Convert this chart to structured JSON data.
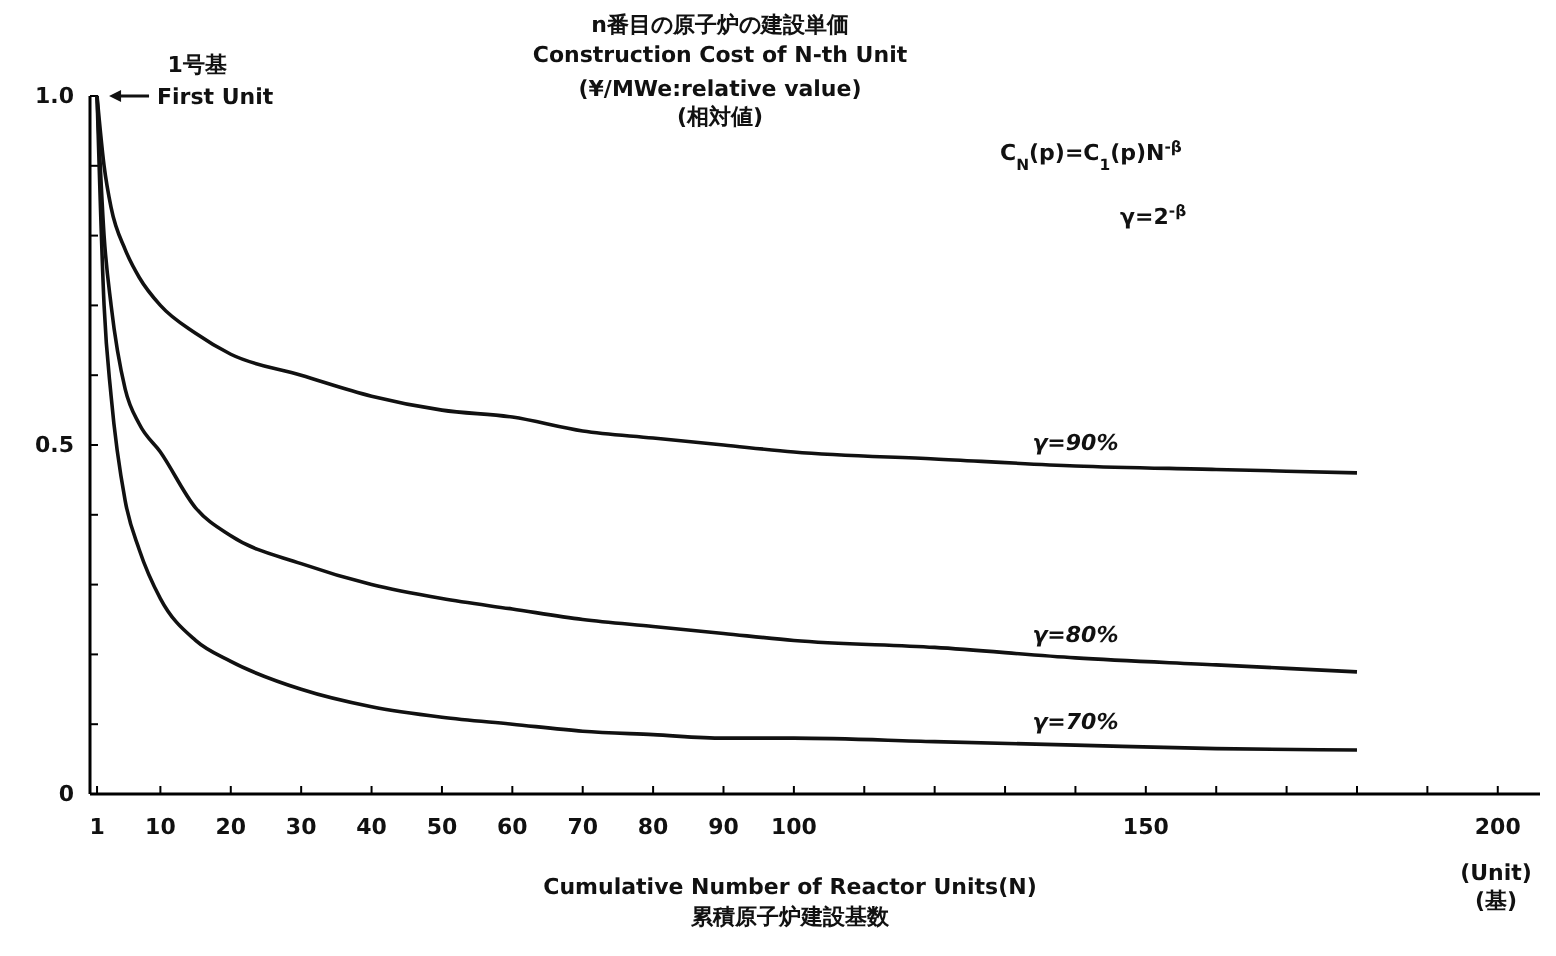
{
  "chart_data": {
    "type": "line",
    "title": "n番目の原子炉の建設単価",
    "subtitle": "Construction Cost of N-th Unit",
    "ylabel": "(¥/MWe:relative value)\n(相対値)",
    "xlabel": "Cumulative Number of Reactor Units(N)\n累積原子炉建設基数",
    "annotations": [
      {
        "text": "1号基\nFirst Unit",
        "x": 1,
        "y": 1
      },
      "C$_{N}$(p)=C$_{1}$(p)N$^{-β}$",
      "γ=2$^{-β}$",
      "(Unit)\n(基)"
    ],
    "x": [
      1,
      2,
      3,
      5,
      7,
      10,
      15,
      20,
      30,
      40,
      50,
      60,
      70,
      80,
      90,
      100,
      120,
      140,
      160,
      180
    ],
    "series": [
      {
        "name": "γ=90%",
        "color": "#111111",
        "values": [
          1,
          0.9,
          0.84,
          0.78,
          0.74,
          0.7,
          0.66,
          0.63,
          0.6,
          0.57,
          0.55,
          0.54,
          0.52,
          0.51,
          0.5,
          0.49,
          0.48,
          0.47,
          0.465,
          0.46
        ]
      },
      {
        "name": "γ=80%",
        "color": "#111111",
        "values": [
          1,
          0.8,
          0.7,
          0.58,
          0.53,
          0.49,
          0.41,
          0.37,
          0.33,
          0.3,
          0.28,
          0.265,
          0.25,
          0.24,
          0.23,
          0.22,
          0.21,
          0.195,
          0.185,
          0.175
        ]
      },
      {
        "name": "γ=70%",
        "color": "#111111",
        "values": [
          1,
          0.7,
          0.57,
          0.42,
          0.35,
          0.28,
          0.22,
          0.19,
          0.15,
          0.125,
          0.11,
          0.1,
          0.09,
          0.085,
          0.08,
          0.08,
          0.075,
          0.07,
          0.065,
          0.063
        ]
      }
    ],
    "xlim": [
      0,
      206
    ],
    "ylim": [
      0,
      1
    ],
    "xticks": [
      1,
      10,
      20,
      30,
      40,
      50,
      60,
      70,
      80,
      90,
      100,
      {
        "value": 110,
        "label": null
      },
      {
        "value": 120,
        "label": null
      },
      {
        "value": 130,
        "label": null
      },
      {
        "value": 140,
        "label": null
      },
      150,
      {
        "value": 160,
        "label": null
      },
      {
        "value": 170,
        "label": null
      },
      {
        "value": 180,
        "label": null
      },
      {
        "value": 190,
        "label": null
      },
      200
    ],
    "yticks": [
      0,
      {
        "value": 0.1,
        "label": null
      },
      {
        "value": 0.2,
        "label": null
      },
      {
        "value": 0.3,
        "label": null
      },
      {
        "value": 0.4,
        "label": null
      },
      0.5,
      {
        "value": 0.6,
        "label": null
      },
      {
        "value": 0.7,
        "label": null
      },
      {
        "value": 0.8,
        "label": null
      },
      {
        "value": 0.9,
        "label": null
      },
      {
        "value": 1,
        "label": "1.0"
      }
    ],
    "grid": false,
    "legend": false,
    "marker": "none",
    "line_style": "solid"
  }
}
